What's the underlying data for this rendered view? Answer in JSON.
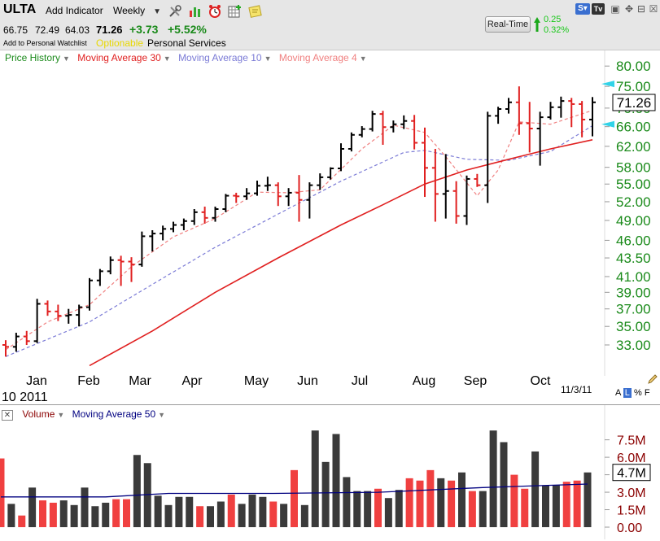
{
  "header": {
    "symbol": "ULTA",
    "add_indicator": "Add Indicator",
    "period": "Weekly",
    "open": "66.75",
    "high": "72.49",
    "low": "64.03",
    "close": "71.26",
    "change": "+3.73",
    "change_pct": "+5.52%",
    "watchlist": "Add to Personal Watchlist",
    "optionable": "Optionable",
    "sector": "Personal Services",
    "realtime_label": "Real-Time",
    "rt_change": "0.25",
    "rt_change_pct": "0.32%"
  },
  "legend": {
    "price": "Price History",
    "ma30": "Moving Average 30",
    "ma10": "Moving Average 10",
    "ma4": "Moving Average 4",
    "volume": "Volume",
    "ma50": "Moving Average 50"
  },
  "colors": {
    "up": "#000000",
    "down": "#e02020",
    "ma30": "#e02020",
    "ma10": "#7b7bd6",
    "ma4": "#f08080",
    "axis_green": "#1a8a1a",
    "vol_axis": "#8b0000",
    "vol_up": "#3a3a3a",
    "vol_down": "#f04040",
    "ma50": "#000080"
  },
  "icons": [
    "tools-icon",
    "bar-chart-icon",
    "alarm-clock-icon",
    "grid-icon",
    "note-icon",
    "up-arrow-icon",
    "s-plus-icon",
    "tv-icon",
    "restore-icon",
    "close-icon"
  ],
  "chart_data": [
    {
      "type": "ohlc",
      "series_names": [
        "Price History",
        "Moving Average 30",
        "Moving Average 10",
        "Moving Average 4"
      ],
      "y_ticks": [
        "80.00",
        "75.00",
        "70.00",
        "66.00",
        "62.00",
        "58.00",
        "55.00",
        "52.00",
        "49.00",
        "46.00",
        "43.50",
        "41.00",
        "39.00",
        "37.00",
        "35.00",
        "33.00"
      ],
      "x_labels": [
        "Jan",
        "Feb",
        "Mar",
        "Apr",
        "May",
        "Jun",
        "Jul",
        "Aug",
        "Sep",
        "Oct"
      ],
      "year_label": "10  2011",
      "date_label": "11/3/11",
      "last_price_label": "71.26",
      "scale_buttons": [
        "A",
        "L",
        "%",
        "F"
      ],
      "ylim": [
        31.5,
        81.5
      ],
      "bars": [
        [
          33.0,
          33.5,
          31.8,
          32.8
        ],
        [
          32.8,
          34.3,
          32.3,
          33.9
        ],
        [
          33.9,
          34.5,
          33.0,
          33.4
        ],
        [
          33.4,
          38.2,
          33.2,
          37.6
        ],
        [
          37.6,
          38.0,
          36.2,
          36.7
        ],
        [
          36.7,
          37.5,
          35.6,
          36.2
        ],
        [
          36.2,
          37.0,
          35.3,
          36.3
        ],
        [
          36.3,
          37.5,
          35.0,
          37.2
        ],
        [
          37.2,
          40.8,
          36.8,
          40.5
        ],
        [
          40.5,
          42.0,
          39.8,
          41.7
        ],
        [
          41.7,
          43.7,
          41.3,
          43.2
        ],
        [
          43.2,
          43.8,
          39.8,
          43.0
        ],
        [
          43.0,
          43.6,
          40.3,
          42.6
        ],
        [
          42.6,
          47.3,
          42.3,
          46.6
        ],
        [
          46.6,
          47.5,
          44.4,
          47.0
        ],
        [
          47.0,
          48.2,
          46.0,
          47.7
        ],
        [
          47.7,
          48.8,
          47.2,
          48.3
        ],
        [
          48.3,
          49.3,
          47.5,
          48.9
        ],
        [
          48.9,
          50.8,
          48.3,
          50.3
        ],
        [
          50.3,
          51.2,
          48.5,
          49.4
        ],
        [
          49.4,
          51.2,
          48.8,
          50.8
        ],
        [
          50.8,
          53.3,
          50.3,
          53.0
        ],
        [
          53.0,
          53.5,
          51.8,
          52.9
        ],
        [
          52.9,
          54.3,
          52.3,
          53.4
        ],
        [
          53.4,
          55.6,
          53.0,
          54.7
        ],
        [
          54.7,
          56.3,
          53.8,
          54.8
        ],
        [
          54.8,
          55.3,
          51.3,
          52.9
        ],
        [
          52.9,
          54.3,
          51.3,
          53.5
        ],
        [
          53.5,
          56.6,
          48.8,
          52.3
        ],
        [
          52.3,
          55.3,
          49.3,
          54.8
        ],
        [
          54.8,
          56.9,
          54.0,
          56.2
        ],
        [
          56.2,
          58.0,
          55.8,
          57.8
        ],
        [
          57.8,
          62.6,
          57.3,
          61.5
        ],
        [
          61.5,
          64.8,
          61.0,
          64.3
        ],
        [
          64.3,
          66.1,
          63.8,
          65.5
        ],
        [
          65.5,
          69.4,
          65.0,
          68.7
        ],
        [
          68.7,
          69.4,
          62.3,
          65.9
        ],
        [
          65.9,
          67.3,
          64.8,
          66.5
        ],
        [
          66.5,
          68.4,
          65.5,
          67.2
        ],
        [
          67.2,
          68.5,
          61.4,
          62.7
        ],
        [
          62.7,
          65.8,
          52.8,
          57.9
        ],
        [
          57.9,
          61.5,
          48.8,
          53.3
        ],
        [
          53.3,
          60.5,
          49.3,
          53.8
        ],
        [
          53.8,
          55.5,
          48.5,
          49.7
        ],
        [
          49.7,
          56.5,
          48.3,
          55.9
        ],
        [
          55.9,
          56.8,
          54.5,
          54.8
        ],
        [
          54.8,
          69.2,
          51.8,
          68.3
        ],
        [
          68.3,
          70.3,
          66.6,
          69.8
        ],
        [
          69.8,
          72.3,
          68.8,
          71.3
        ],
        [
          71.3,
          75.0,
          64.3,
          66.7
        ],
        [
          66.7,
          71.4,
          60.8,
          65.6
        ],
        [
          65.6,
          69.2,
          58.3,
          68.0
        ],
        [
          68.0,
          71.4,
          67.5,
          70.2
        ],
        [
          70.2,
          72.6,
          67.9,
          71.6
        ],
        [
          71.6,
          72.3,
          65.9,
          70.9
        ],
        [
          70.9,
          71.6,
          63.8,
          67.5
        ],
        [
          67.5,
          72.5,
          64.0,
          71.3
        ]
      ],
      "ma30": [
        [
          8,
          30.9
        ],
        [
          14,
          34.5
        ],
        [
          20,
          39.0
        ],
        [
          26,
          43.5
        ],
        [
          32,
          48.3
        ],
        [
          36,
          51.5
        ],
        [
          40,
          55.0
        ],
        [
          44,
          57.5
        ],
        [
          48,
          59.5
        ],
        [
          52,
          61.5
        ],
        [
          56,
          63.3
        ]
      ],
      "ma10": [
        [
          0,
          31.8
        ],
        [
          8,
          35.5
        ],
        [
          14,
          40.0
        ],
        [
          20,
          45.0
        ],
        [
          26,
          50.0
        ],
        [
          32,
          55.5
        ],
        [
          36,
          59.0
        ],
        [
          38,
          60.8
        ],
        [
          40,
          61.2
        ],
        [
          44,
          59.5
        ],
        [
          48,
          59.3
        ],
        [
          52,
          61.0
        ],
        [
          56,
          66.2
        ]
      ],
      "ma4": [
        [
          0,
          32.5
        ],
        [
          4,
          35.5
        ],
        [
          8,
          37.5
        ],
        [
          12,
          42.3
        ],
        [
          16,
          46.5
        ],
        [
          20,
          49.3
        ],
        [
          24,
          53.6
        ],
        [
          27,
          53.5
        ],
        [
          30,
          54.0
        ],
        [
          34,
          61.5
        ],
        [
          37,
          66.3
        ],
        [
          40,
          64.8
        ],
        [
          42,
          60.0
        ],
        [
          45,
          53.0
        ],
        [
          47,
          57.5
        ],
        [
          49,
          67.0
        ],
        [
          52,
          66.5
        ],
        [
          56,
          69.5
        ]
      ]
    },
    {
      "type": "bar",
      "series_names": [
        "Volume",
        "Moving Average 50"
      ],
      "y_ticks": [
        "7.5M",
        "6.0M",
        "4.5M",
        "3.0M",
        "1.5M",
        "0.00"
      ],
      "last_value_label": "4.7M",
      "ylim": [
        0,
        9.5
      ],
      "volume_millions": [
        5.9,
        2.0,
        1.0,
        3.4,
        2.3,
        2.1,
        2.3,
        1.9,
        3.4,
        1.8,
        2.1,
        2.4,
        2.4,
        6.2,
        5.5,
        2.7,
        1.9,
        2.6,
        2.6,
        1.8,
        1.8,
        2.2,
        2.8,
        2.0,
        2.8,
        2.6,
        2.2,
        2.0,
        4.9,
        1.9,
        8.3,
        5.6,
        8.0,
        4.3,
        3.1,
        3.1,
        3.3,
        2.5,
        3.2,
        4.2,
        4.0,
        4.9,
        4.2,
        4.0,
        4.7,
        3.1,
        3.1,
        8.3,
        7.3,
        4.5,
        3.3,
        6.5,
        3.6,
        3.6,
        3.9,
        4.0,
        4.7
      ],
      "ma50": [
        [
          0,
          2.6
        ],
        [
          10,
          2.6
        ],
        [
          16,
          2.9
        ],
        [
          26,
          2.9
        ],
        [
          36,
          3.0
        ],
        [
          46,
          3.4
        ],
        [
          56,
          3.7
        ]
      ]
    }
  ]
}
